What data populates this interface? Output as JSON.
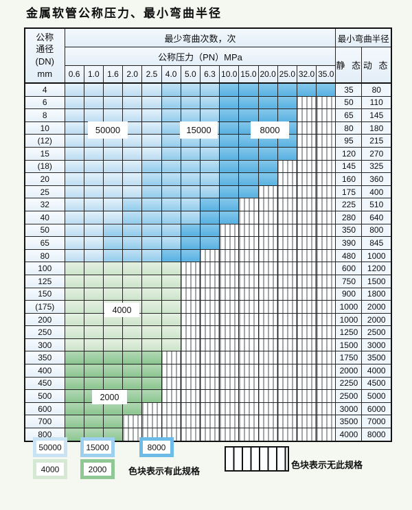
{
  "title": "金属软管公称压力、最小弯曲半径",
  "table": {
    "dn_header": "公称\n通径\n(DN)\nmm",
    "cycles_header": "最少弯曲次数，次",
    "radius_header": "最小弯曲半径",
    "pressure_header": "公称压力（PN）MPa",
    "static_header": "静 态",
    "dynamic_header": "动 态",
    "pressures": [
      "0.6",
      "1.0",
      "1.6",
      "2.0",
      "2.5",
      "4.0",
      "5.0",
      "6.3",
      "10.0",
      "15.0",
      "20.0",
      "25.0",
      "32.0",
      "35.0"
    ],
    "cell_codes": {
      "a": {
        "meaning": "bend cycles 50000",
        "value": 50000
      },
      "b": {
        "meaning": "bend cycles 15000",
        "value": 15000
      },
      "c": {
        "meaning": "bend cycles 8000",
        "value": 8000
      },
      "g": {
        "meaning": "bend cycles 4000",
        "value": 4000
      },
      "G": {
        "meaning": "bend cycles 2000",
        "value": 2000
      },
      "x": {
        "meaning": "no such specification"
      }
    },
    "rows": [
      {
        "dn": "4",
        "static": "35",
        "dynamic": "80",
        "cells": "aaaaabbbcccccc"
      },
      {
        "dn": "6",
        "static": "50",
        "dynamic": "110",
        "cells": "aaaaabbbccccxx"
      },
      {
        "dn": "8",
        "static": "65",
        "dynamic": "145",
        "cells": "aaaaabbbccccxx"
      },
      {
        "dn": "10",
        "static": "80",
        "dynamic": "180",
        "cells": "aaaaabbbccccxx"
      },
      {
        "dn": "(12)",
        "static": "95",
        "dynamic": "215",
        "cells": "aaaaabbbccccxx"
      },
      {
        "dn": "15",
        "static": "120",
        "dynamic": "270",
        "cells": "aaaaabbbccccxx"
      },
      {
        "dn": "(18)",
        "static": "145",
        "dynamic": "325",
        "cells": "aaaabbbbcccxxx"
      },
      {
        "dn": "20",
        "static": "160",
        "dynamic": "360",
        "cells": "aaaabbbbcccxxx"
      },
      {
        "dn": "25",
        "static": "175",
        "dynamic": "400",
        "cells": "aaaabbbbccxxxx"
      },
      {
        "dn": "32",
        "static": "225",
        "dynamic": "510",
        "cells": "aaabbbbccxxxxx"
      },
      {
        "dn": "40",
        "static": "280",
        "dynamic": "640",
        "cells": "aaabbbbccxxxxx"
      },
      {
        "dn": "50",
        "static": "350",
        "dynamic": "800",
        "cells": "aabbbbccxxxxxx"
      },
      {
        "dn": "65",
        "static": "390",
        "dynamic": "845",
        "cells": "aabbbbccxxxxxx"
      },
      {
        "dn": "80",
        "static": "480",
        "dynamic": "1000",
        "cells": "aabbbccxxxxxxx"
      },
      {
        "dn": "100",
        "static": "600",
        "dynamic": "1200",
        "cells": "ggggggxxxxxxxx"
      },
      {
        "dn": "125",
        "static": "750",
        "dynamic": "1500",
        "cells": "ggggggxxxxxxxx"
      },
      {
        "dn": "150",
        "static": "900",
        "dynamic": "1800",
        "cells": "ggggggxxxxxxxx"
      },
      {
        "dn": "(175)",
        "static": "1000",
        "dynamic": "2000",
        "cells": "ggggggxxxxxxxx"
      },
      {
        "dn": "200",
        "static": "1000",
        "dynamic": "2000",
        "cells": "ggggggxxxxxxxx"
      },
      {
        "dn": "250",
        "static": "1250",
        "dynamic": "2500",
        "cells": "ggggggxxxxxxxx"
      },
      {
        "dn": "300",
        "static": "1500",
        "dynamic": "3000",
        "cells": "ggggggxxxxxxxx"
      },
      {
        "dn": "350",
        "static": "1750",
        "dynamic": "3500",
        "cells": "GGGGGxxxxxxxxx"
      },
      {
        "dn": "400",
        "static": "2000",
        "dynamic": "4000",
        "cells": "GGGGGxxxxxxxxx"
      },
      {
        "dn": "450",
        "static": "2250",
        "dynamic": "4500",
        "cells": "GGGGGxxxxxxxxx"
      },
      {
        "dn": "500",
        "static": "2500",
        "dynamic": "5000",
        "cells": "GGGGGxxxxxxxxx"
      },
      {
        "dn": "600",
        "static": "3000",
        "dynamic": "6000",
        "cells": "GGGGxxxxxxxxxx"
      },
      {
        "dn": "700",
        "static": "3500",
        "dynamic": "7000",
        "cells": "GGGxxxxxxxxxxx"
      },
      {
        "dn": "800",
        "static": "4000",
        "dynamic": "8000",
        "cells": "GGGxxxxxxxxxxx"
      }
    ]
  },
  "overlay_labels": {
    "v50000": "50000",
    "v15000": "15000",
    "v8000": "8000",
    "v4000": "4000",
    "v2000": "2000"
  },
  "legend": {
    "items": [
      {
        "value": "50000",
        "color": "#c9e3f5"
      },
      {
        "value": "15000",
        "color": "#9dd0ee"
      },
      {
        "value": "8000",
        "color": "#6cbce7"
      },
      {
        "value": "4000",
        "color": "#d5e8d3"
      },
      {
        "value": "2000",
        "color": "#8fc795"
      }
    ],
    "has_spec_text": "色块表示有此规格",
    "no_spec_text": "色块表示无此规格"
  },
  "colors": {
    "zone_50000": "#c9e3f5",
    "zone_15000": "#9dd0ee",
    "zone_8000": "#6cbce7",
    "zone_4000": "#d5e8d3",
    "zone_2000": "#8fc795",
    "no_spec_bg": "#fcfeff",
    "grid_line": "#222222",
    "page_bg": "#f4f8f1"
  }
}
